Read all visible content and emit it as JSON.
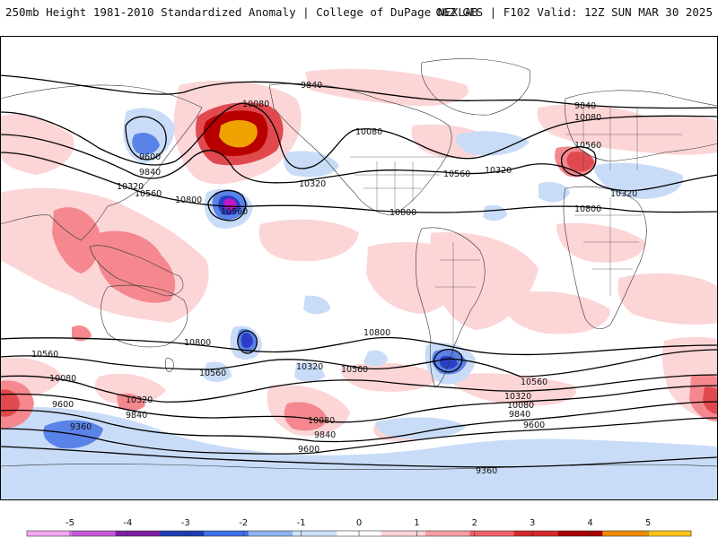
{
  "header": {
    "title": "250mb Height 1981-2010 Standardized Anomaly | College of DuPage NEXLAB",
    "valid": "06Z GFS | F102 Valid: 12Z SUN MAR 30 2025"
  },
  "contour_labels": [
    "9840",
    "10080",
    "10080",
    "9840",
    "9600",
    "9840",
    "10320",
    "10560",
    "10800",
    "10560",
    "10320",
    "10080",
    "10560",
    "10320",
    "10560",
    "10320",
    "10800",
    "10800",
    "10560",
    "10800",
    "10560",
    "10080",
    "10320",
    "10560",
    "10800",
    "10320",
    "10560",
    "10320",
    "10080",
    "9840",
    "9600",
    "9840",
    "9600",
    "9360",
    "10080",
    "9840",
    "9600",
    "9360"
  ],
  "colorbar": {
    "ticks": [
      "-5",
      "-4",
      "-3",
      "-2",
      "-1",
      "0",
      "1",
      "2",
      "3",
      "4",
      "5"
    ],
    "colors": [
      "#f4a8f5",
      "#c25ad6",
      "#7b1fa2",
      "#1f3bb0",
      "#3f6fe8",
      "#8fb3f2",
      "#cfe0fa",
      "#ffffff",
      "#ffd2d6",
      "#f79ea6",
      "#ef6168",
      "#d52929",
      "#a80000",
      "#ef8a00",
      "#ffc31a"
    ]
  },
  "anomaly_colors": {
    "pos_weak": "#fcd5d7",
    "pos_mod": "#f4888e",
    "pos_strong": "#e04a4f",
    "pos_extreme": "#b80000",
    "pos_max": "#f0a300",
    "neg_weak": "#c9dcf7",
    "neg_mod": "#5a83e8",
    "neg_strong": "#2c3fc4",
    "neg_max": "#c318c3"
  }
}
